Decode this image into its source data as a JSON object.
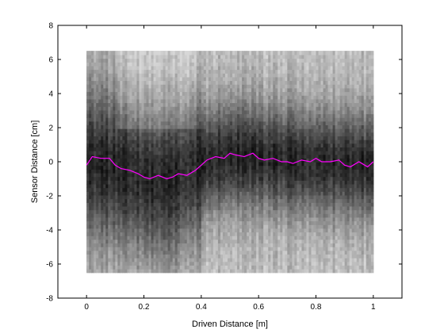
{
  "chart_data": {
    "type": "heatmap",
    "title": "",
    "xlabel": "Driven Distance [m]",
    "ylabel": "Sensor Distance [cm]",
    "xlim": [
      -0.1,
      1.1
    ],
    "ylim": [
      -8,
      8
    ],
    "x_ticks": [
      0,
      0.2,
      0.4,
      0.6,
      0.8,
      1
    ],
    "x_tick_labels": [
      "0",
      "0.2",
      "0.4",
      "0.6",
      "0.8",
      "1"
    ],
    "y_ticks": [
      -8,
      -6,
      -4,
      -2,
      0,
      2,
      4,
      6,
      8
    ],
    "y_tick_labels": [
      "-8",
      "-6",
      "-4",
      "-2",
      "0",
      "2",
      "4",
      "6",
      "8"
    ],
    "heatmap": {
      "x_range": [
        0,
        1
      ],
      "y_range": [
        -6.5,
        6.5
      ],
      "colormap": "grayscale",
      "description_note": "",
      "dark_band_center": {
        "x": [
          0,
          0.1,
          0.2,
          0.25,
          0.3,
          0.35,
          0.4,
          0.5,
          0.6,
          0.7,
          0.8,
          0.9,
          1.0
        ],
        "y": [
          0.0,
          -0.3,
          -0.9,
          -1.1,
          -1.0,
          -0.6,
          0.0,
          0.4,
          0.3,
          0.1,
          0.0,
          -0.1,
          -0.2
        ]
      }
    },
    "series": [
      {
        "type": "line",
        "color": "#ff00ff",
        "x": [
          0,
          0.02,
          0.05,
          0.08,
          0.1,
          0.12,
          0.15,
          0.18,
          0.2,
          0.22,
          0.25,
          0.28,
          0.3,
          0.32,
          0.35,
          0.38,
          0.4,
          0.42,
          0.45,
          0.48,
          0.5,
          0.52,
          0.55,
          0.58,
          0.6,
          0.62,
          0.65,
          0.68,
          0.7,
          0.72,
          0.75,
          0.78,
          0.8,
          0.82,
          0.85,
          0.88,
          0.9,
          0.92,
          0.95,
          0.98,
          1.0
        ],
        "y": [
          -0.2,
          0.3,
          0.2,
          0.2,
          -0.2,
          -0.4,
          -0.5,
          -0.7,
          -0.9,
          -1.0,
          -0.8,
          -1.0,
          -0.9,
          -0.7,
          -0.8,
          -0.5,
          -0.2,
          0.1,
          0.3,
          0.2,
          0.5,
          0.4,
          0.3,
          0.5,
          0.2,
          0.1,
          0.2,
          0.0,
          0.0,
          -0.1,
          0.1,
          0.0,
          0.2,
          0.0,
          0.0,
          0.1,
          -0.2,
          -0.3,
          0.0,
          -0.3,
          0.0
        ]
      }
    ],
    "grid": false,
    "legend": "none"
  }
}
